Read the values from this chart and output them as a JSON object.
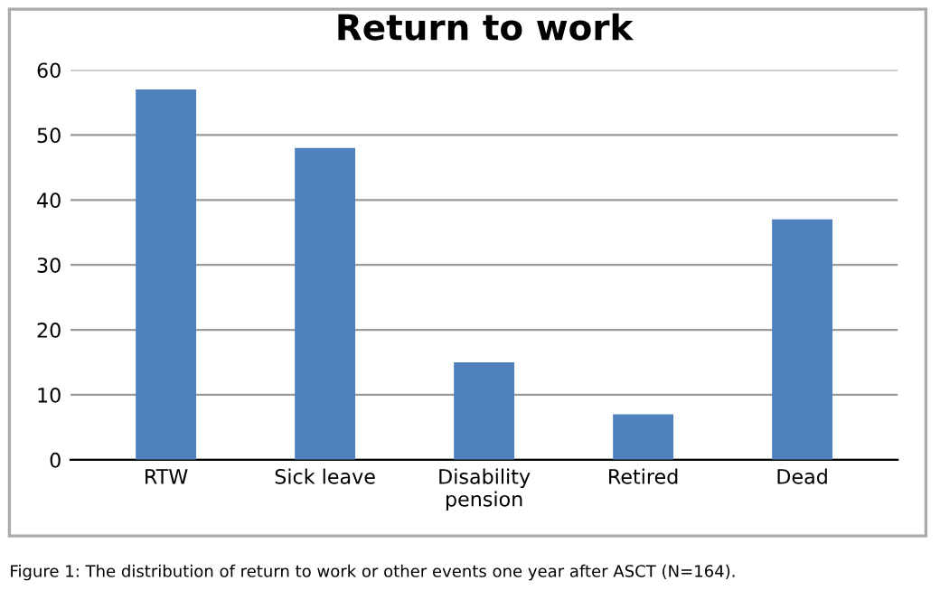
{
  "chart_data": {
    "type": "bar",
    "title": "Return to work",
    "categories": [
      "RTW",
      "Sick leave",
      "Disability\npension",
      "Retired",
      "Dead"
    ],
    "values": [
      57,
      48,
      15,
      7,
      37
    ],
    "color": "#4f81bd",
    "ylim": [
      0,
      60
    ],
    "yticks": [
      0,
      10,
      20,
      30,
      40,
      50,
      60
    ],
    "grid": "y",
    "legend": false,
    "annotations": [
      "Figure 1: The distribution of return to work or other events one year after ASCT (N=164)."
    ]
  }
}
